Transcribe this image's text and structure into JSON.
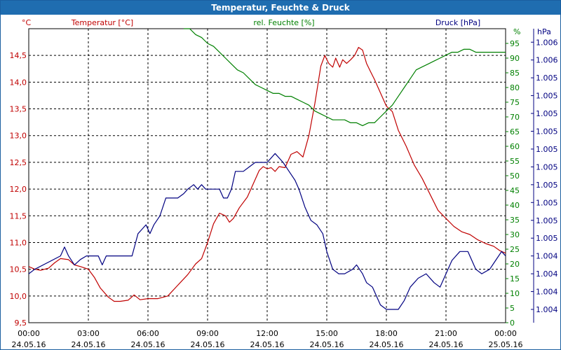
{
  "window": {
    "title": "Temperatur, Feuchte & Druck"
  },
  "chart_data": {
    "type": "line",
    "title": "Temperatur, Feuchte & Druck",
    "x_start": "24.05.16 00:00",
    "x_end": "25.05.16 00:00",
    "x_ticks": [
      {
        "time": "00:00",
        "date": "24.05.16"
      },
      {
        "time": "03:00",
        "date": "24.05.16"
      },
      {
        "time": "06:00",
        "date": "24.05.16"
      },
      {
        "time": "09:00",
        "date": "24.05.16"
      },
      {
        "time": "12:00",
        "date": "24.05.16"
      },
      {
        "time": "15:00",
        "date": "24.05.16"
      },
      {
        "time": "18:00",
        "date": "24.05.16"
      },
      {
        "time": "21:00",
        "date": "24.05.16"
      },
      {
        "time": "00:00",
        "date": "25.05.16"
      }
    ],
    "grid": true,
    "axes": {
      "temperature": {
        "unit": "°C",
        "ylim": [
          9.5,
          15.0
        ],
        "color": "#c00000",
        "ticks": [
          "9,5",
          "10,0",
          "10,5",
          "11,0",
          "11,5",
          "12,0",
          "12,5",
          "13,0",
          "13,5",
          "14,0",
          "14,5"
        ]
      },
      "humidity": {
        "unit": "%",
        "ylim": [
          0,
          100
        ],
        "color": "#008000",
        "ticks": [
          "0",
          "5",
          "10",
          "15",
          "20",
          "25",
          "30",
          "35",
          "40",
          "45",
          "50",
          "55",
          "60",
          "65",
          "70",
          "75",
          "80",
          "85",
          "90",
          "95"
        ]
      },
      "pressure": {
        "unit": "hPa",
        "color": "#000080",
        "ticks": [
          "1.004",
          "1.004",
          "1.004",
          "1.004",
          "1.005",
          "1.005",
          "1.005",
          "1.005",
          "1.005",
          "1.005",
          "1.005",
          "1.005",
          "1.005",
          "1.005",
          "1.006",
          "1.006"
        ]
      }
    },
    "series": [
      {
        "name": "Temperatur [°C]",
        "axis": "temperature",
        "color": "#c00000",
        "points": [
          [
            0,
            10.55
          ],
          [
            0.3,
            10.5
          ],
          [
            0.6,
            10.48
          ],
          [
            1,
            10.52
          ],
          [
            1.3,
            10.62
          ],
          [
            1.6,
            10.7
          ],
          [
            2,
            10.68
          ],
          [
            2.3,
            10.58
          ],
          [
            2.6,
            10.55
          ],
          [
            3,
            10.5
          ],
          [
            3.3,
            10.35
          ],
          [
            3.6,
            10.15
          ],
          [
            4,
            9.98
          ],
          [
            4.3,
            9.9
          ],
          [
            4.6,
            9.9
          ],
          [
            5,
            9.92
          ],
          [
            5.3,
            10.02
          ],
          [
            5.6,
            9.93
          ],
          [
            6,
            9.95
          ],
          [
            6.5,
            9.95
          ],
          [
            7,
            10.0
          ],
          [
            7.5,
            10.2
          ],
          [
            8,
            10.4
          ],
          [
            8.4,
            10.6
          ],
          [
            8.7,
            10.7
          ],
          [
            9,
            11.0
          ],
          [
            9.3,
            11.35
          ],
          [
            9.6,
            11.55
          ],
          [
            9.9,
            11.5
          ],
          [
            10.1,
            11.38
          ],
          [
            10.3,
            11.45
          ],
          [
            10.6,
            11.65
          ],
          [
            11,
            11.85
          ],
          [
            11.3,
            12.1
          ],
          [
            11.6,
            12.35
          ],
          [
            11.8,
            12.42
          ],
          [
            12,
            12.38
          ],
          [
            12.2,
            12.4
          ],
          [
            12.4,
            12.33
          ],
          [
            12.6,
            12.42
          ],
          [
            12.9,
            12.4
          ],
          [
            13.2,
            12.65
          ],
          [
            13.5,
            12.7
          ],
          [
            13.8,
            12.6
          ],
          [
            14.1,
            13.0
          ],
          [
            14.4,
            13.6
          ],
          [
            14.7,
            14.3
          ],
          [
            14.9,
            14.5
          ],
          [
            15.1,
            14.35
          ],
          [
            15.3,
            14.28
          ],
          [
            15.45,
            14.45
          ],
          [
            15.65,
            14.28
          ],
          [
            15.8,
            14.42
          ],
          [
            16,
            14.35
          ],
          [
            16.2,
            14.42
          ],
          [
            16.4,
            14.5
          ],
          [
            16.6,
            14.65
          ],
          [
            16.8,
            14.6
          ],
          [
            17,
            14.35
          ],
          [
            17.2,
            14.2
          ],
          [
            17.4,
            14.05
          ],
          [
            17.7,
            13.8
          ],
          [
            18,
            13.55
          ],
          [
            18.3,
            13.45
          ],
          [
            18.6,
            13.1
          ],
          [
            19,
            12.8
          ],
          [
            19.4,
            12.45
          ],
          [
            19.8,
            12.2
          ],
          [
            20.2,
            11.9
          ],
          [
            20.6,
            11.6
          ],
          [
            21,
            11.45
          ],
          [
            21.4,
            11.3
          ],
          [
            21.8,
            11.2
          ],
          [
            22.2,
            11.15
          ],
          [
            22.6,
            11.05
          ],
          [
            23,
            10.98
          ],
          [
            23.4,
            10.93
          ],
          [
            23.7,
            10.85
          ],
          [
            24,
            10.8
          ]
        ]
      },
      {
        "name": "rel. Feuchte [%]",
        "axis": "humidity",
        "color": "#008000",
        "points": [
          [
            7.8,
            101
          ],
          [
            8.1,
            100
          ],
          [
            8.4,
            98
          ],
          [
            8.7,
            97
          ],
          [
            9,
            95
          ],
          [
            9.3,
            94
          ],
          [
            9.6,
            92
          ],
          [
            9.9,
            90
          ],
          [
            10.2,
            88
          ],
          [
            10.5,
            86
          ],
          [
            10.8,
            85
          ],
          [
            11.1,
            83
          ],
          [
            11.4,
            81
          ],
          [
            11.7,
            80
          ],
          [
            12,
            79
          ],
          [
            12.3,
            78
          ],
          [
            12.6,
            78
          ],
          [
            12.9,
            77
          ],
          [
            13.2,
            77
          ],
          [
            13.5,
            76
          ],
          [
            13.8,
            75
          ],
          [
            14.1,
            74
          ],
          [
            14.4,
            72
          ],
          [
            14.7,
            71
          ],
          [
            15.0,
            70
          ],
          [
            15.3,
            69
          ],
          [
            15.6,
            69
          ],
          [
            15.9,
            69
          ],
          [
            16.2,
            68
          ],
          [
            16.5,
            68
          ],
          [
            16.8,
            67
          ],
          [
            17.1,
            68
          ],
          [
            17.4,
            68
          ],
          [
            17.7,
            70
          ],
          [
            18,
            72
          ],
          [
            18.3,
            74
          ],
          [
            18.6,
            77
          ],
          [
            18.9,
            80
          ],
          [
            19.2,
            83
          ],
          [
            19.5,
            86
          ],
          [
            19.8,
            87
          ],
          [
            20.1,
            88
          ],
          [
            20.4,
            89
          ],
          [
            20.7,
            90
          ],
          [
            21,
            91
          ],
          [
            21.3,
            92
          ],
          [
            21.6,
            92
          ],
          [
            21.9,
            93
          ],
          [
            22.2,
            93
          ],
          [
            22.5,
            92
          ],
          [
            22.8,
            92
          ],
          [
            23.1,
            92
          ],
          [
            23.4,
            92
          ],
          [
            23.7,
            92
          ],
          [
            24,
            92
          ]
        ]
      },
      {
        "name": "Druck [hPa]",
        "axis": "pressure",
        "color": "#000080",
        "points": [
          [
            0,
            2.75
          ],
          [
            0.3,
            3.0
          ],
          [
            1.6,
            3.75
          ],
          [
            1.8,
            4.25
          ],
          [
            2.0,
            3.75
          ],
          [
            2.3,
            3.25
          ],
          [
            2.6,
            3.55
          ],
          [
            2.9,
            3.75
          ],
          [
            3.5,
            3.75
          ],
          [
            3.7,
            3.25
          ],
          [
            3.9,
            3.75
          ],
          [
            4.2,
            3.75
          ],
          [
            5.2,
            3.75
          ],
          [
            5.5,
            5.0
          ],
          [
            5.7,
            5.25
          ],
          [
            5.9,
            5.5
          ],
          [
            6.1,
            5.0
          ],
          [
            6.3,
            5.5
          ],
          [
            6.6,
            6.0
          ],
          [
            6.9,
            7.0
          ],
          [
            7.5,
            7.0
          ],
          [
            7.8,
            7.25
          ],
          [
            8.0,
            7.5
          ],
          [
            8.3,
            7.75
          ],
          [
            8.5,
            7.5
          ],
          [
            8.7,
            7.75
          ],
          [
            8.9,
            7.5
          ],
          [
            9.3,
            7.5
          ],
          [
            9.6,
            7.5
          ],
          [
            9.8,
            7.0
          ],
          [
            10.0,
            7.0
          ],
          [
            10.2,
            7.5
          ],
          [
            10.4,
            8.5
          ],
          [
            10.8,
            8.5
          ],
          [
            11.1,
            8.75
          ],
          [
            11.4,
            9.0
          ],
          [
            12.0,
            9.0
          ],
          [
            12.4,
            9.5
          ],
          [
            12.8,
            9.0
          ],
          [
            13.1,
            8.5
          ],
          [
            13.4,
            8.0
          ],
          [
            13.6,
            7.5
          ],
          [
            13.9,
            6.5
          ],
          [
            14.2,
            5.75
          ],
          [
            14.5,
            5.5
          ],
          [
            14.8,
            5.0
          ],
          [
            15.0,
            4.0
          ],
          [
            15.3,
            3.0
          ],
          [
            15.6,
            2.75
          ],
          [
            15.9,
            2.75
          ],
          [
            16.3,
            3.0
          ],
          [
            16.5,
            3.25
          ],
          [
            16.8,
            2.75
          ],
          [
            17.0,
            2.25
          ],
          [
            17.3,
            2.0
          ],
          [
            17.7,
            1.0
          ],
          [
            18.0,
            0.75
          ],
          [
            18.6,
            0.75
          ],
          [
            18.9,
            1.25
          ],
          [
            19.2,
            2.0
          ],
          [
            19.6,
            2.5
          ],
          [
            20.0,
            2.75
          ],
          [
            20.4,
            2.25
          ],
          [
            20.7,
            2.0
          ],
          [
            21.0,
            2.75
          ],
          [
            21.3,
            3.5
          ],
          [
            21.7,
            4.0
          ],
          [
            22.1,
            4.0
          ],
          [
            22.5,
            3.0
          ],
          [
            22.8,
            2.75
          ],
          [
            23.2,
            3.0
          ],
          [
            23.5,
            3.5
          ],
          [
            23.8,
            4.0
          ],
          [
            24.0,
            3.75
          ]
        ]
      }
    ]
  }
}
